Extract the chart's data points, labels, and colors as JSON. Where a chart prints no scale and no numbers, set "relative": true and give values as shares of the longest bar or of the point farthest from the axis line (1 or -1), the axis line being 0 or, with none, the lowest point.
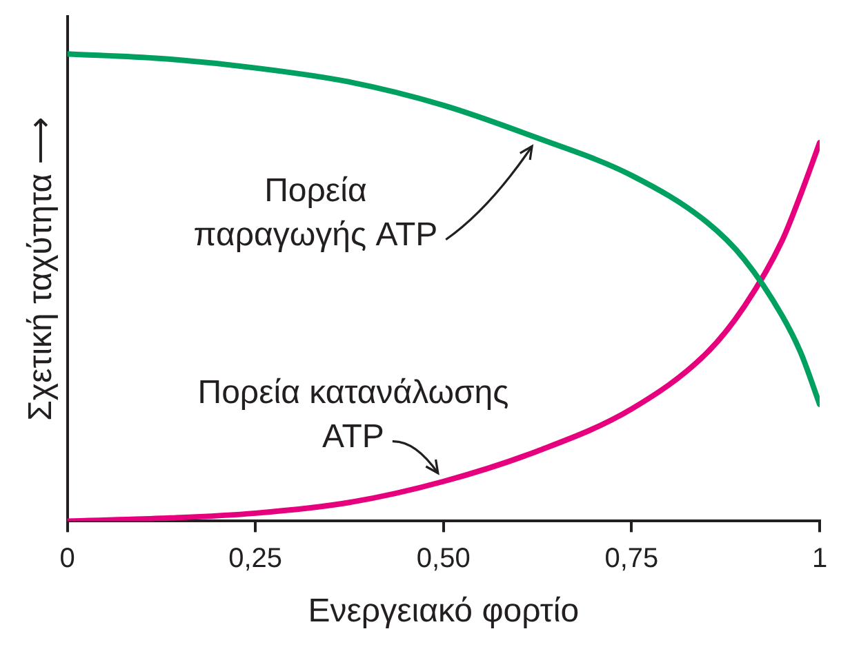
{
  "chart_data": {
    "type": "line",
    "relative": true,
    "xlabel": "Ενεργειακό φορτίο",
    "ylabel": "Σχετική ταχύτητα ⟶",
    "x": [
      0,
      0.125,
      0.25,
      0.375,
      0.5,
      0.625,
      0.75,
      0.85,
      0.9,
      0.95,
      0.975,
      1
    ],
    "xlim": [
      0,
      1
    ],
    "xticks": [
      0,
      {
        "value": 0.25,
        "label": "0,25"
      },
      {
        "value": 0.5,
        "label": "0,50"
      },
      {
        "value": 0.75,
        "label": "0,75"
      },
      1
    ],
    "series": [
      {
        "color": "#00a060",
        "values": [
          1.0,
          0.99,
          0.97,
          0.94,
          0.89,
          0.82,
          0.74,
          0.64,
          0.56,
          0.44,
          0.36,
          0.25
        ]
      },
      {
        "color": "#e6007e",
        "values": [
          0,
          0.006,
          0.017,
          0.04,
          0.085,
          0.15,
          0.24,
          0.36,
          0.46,
          0.6,
          0.7,
          0.81
        ]
      }
    ],
    "annotations": [
      "Πορεία\nπαραγωγής ATP",
      "Πορεία κατανάλωσης\nATP"
    ],
    "grid": false,
    "legend": false,
    "marker": "none",
    "line_style": "solid"
  }
}
